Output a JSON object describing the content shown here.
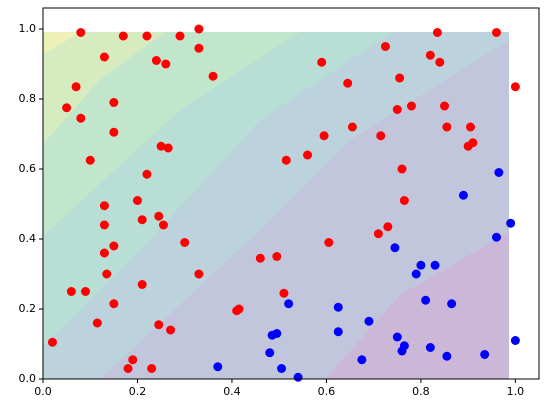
{
  "chart_data": {
    "type": "scatter",
    "xlim": [
      0,
      1.05
    ],
    "ylim": [
      0,
      1.06
    ],
    "xticks": [
      {
        "value": 0,
        "label": "0.0"
      },
      0.2,
      0.4,
      0.6,
      0.8,
      {
        "value": 1,
        "label": "1.0"
      }
    ],
    "yticks": [
      {
        "value": 0,
        "label": "0.0"
      },
      0.2,
      0.4,
      0.6,
      0.8,
      {
        "value": 1,
        "label": "1.0"
      }
    ],
    "series": [
      {
        "color": "#ff0000",
        "x": [
          0.08,
          0.17,
          0.22,
          0.29,
          0.33,
          0.33,
          0.13,
          0.07,
          0.05,
          0.08,
          0.15,
          0.24,
          0.26,
          0.36,
          0.15,
          0.1,
          0.25,
          0.265,
          0.22,
          0.2,
          0.13,
          0.13,
          0.21,
          0.245,
          0.255,
          0.15,
          0.3,
          0.13,
          0.135,
          0.21,
          0.06,
          0.09,
          0.15,
          0.115,
          0.245,
          0.27,
          0.33,
          0.02,
          0.19,
          0.18,
          0.23,
          0.41,
          0.415,
          0.46,
          0.495,
          0.51,
          0.515,
          0.56,
          0.59,
          0.595,
          0.645,
          0.655,
          0.605,
          0.71,
          0.73,
          0.725,
          0.715,
          0.75,
          0.755,
          0.76,
          0.765,
          0.78,
          0.82,
          0.835,
          0.84,
          0.85,
          0.855,
          0.9,
          0.905,
          0.91,
          0.96,
          1.0
        ],
        "values": [
          0.99,
          0.98,
          0.98,
          0.98,
          1.0,
          0.945,
          0.92,
          0.835,
          0.775,
          0.745,
          0.79,
          0.91,
          0.9,
          0.865,
          0.705,
          0.625,
          0.665,
          0.66,
          0.585,
          0.51,
          0.495,
          0.44,
          0.455,
          0.465,
          0.44,
          0.38,
          0.39,
          0.36,
          0.3,
          0.27,
          0.25,
          0.25,
          0.215,
          0.16,
          0.155,
          0.14,
          0.3,
          0.105,
          0.055,
          0.03,
          0.03,
          0.195,
          0.2,
          0.345,
          0.35,
          0.245,
          0.625,
          0.64,
          0.905,
          0.695,
          0.845,
          0.72,
          0.39,
          0.415,
          0.435,
          0.95,
          0.695,
          0.77,
          0.86,
          0.6,
          0.51,
          0.78,
          0.925,
          0.99,
          0.905,
          0.78,
          0.72,
          0.665,
          0.72,
          0.675,
          0.99,
          0.835
        ]
      },
      {
        "color": "#0000ff",
        "x": [
          0.37,
          0.48,
          0.485,
          0.495,
          0.505,
          0.52,
          0.54,
          0.625,
          0.625,
          0.69,
          0.675,
          0.745,
          0.75,
          0.76,
          0.765,
          0.79,
          0.8,
          0.81,
          0.82,
          0.83,
          0.855,
          0.865,
          0.89,
          0.935,
          0.96,
          0.965,
          0.99,
          1.0
        ],
        "values": [
          0.035,
          0.075,
          0.125,
          0.13,
          0.03,
          0.215,
          0.005,
          0.205,
          0.135,
          0.165,
          0.055,
          0.375,
          0.12,
          0.08,
          0.095,
          0.3,
          0.325,
          0.225,
          0.09,
          0.325,
          0.065,
          0.215,
          0.525,
          0.07,
          0.405,
          0.59,
          0.445,
          0.11
        ]
      }
    ]
  }
}
